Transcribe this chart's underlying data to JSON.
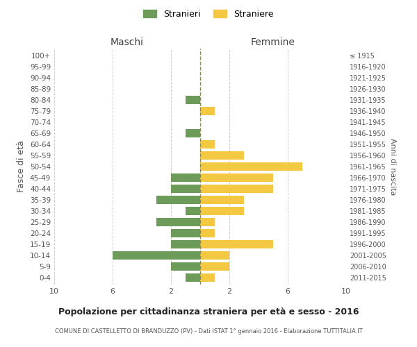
{
  "age_groups": [
    "0-4",
    "5-9",
    "10-14",
    "15-19",
    "20-24",
    "25-29",
    "30-34",
    "35-39",
    "40-44",
    "45-49",
    "50-54",
    "55-59",
    "60-64",
    "65-69",
    "70-74",
    "75-79",
    "80-84",
    "85-89",
    "90-94",
    "95-99",
    "100+"
  ],
  "birth_years": [
    "2011-2015",
    "2006-2010",
    "2001-2005",
    "1996-2000",
    "1991-1995",
    "1986-1990",
    "1981-1985",
    "1976-1980",
    "1971-1975",
    "1966-1970",
    "1961-1965",
    "1956-1960",
    "1951-1955",
    "1946-1950",
    "1941-1945",
    "1936-1940",
    "1931-1935",
    "1926-1930",
    "1921-1925",
    "1916-1920",
    "≤ 1915"
  ],
  "maschi": [
    1,
    2,
    6,
    2,
    2,
    3,
    1,
    3,
    2,
    2,
    0,
    0,
    0,
    1,
    0,
    0,
    1,
    0,
    0,
    0,
    0
  ],
  "femmine": [
    1,
    2,
    2,
    5,
    1,
    1,
    3,
    3,
    5,
    5,
    7,
    3,
    1,
    0,
    0,
    1,
    0,
    0,
    0,
    0,
    0
  ],
  "male_color": "#6d9b5a",
  "female_color": "#f5c842",
  "background_color": "#ffffff",
  "grid_color": "#cccccc",
  "center_line_color": "#888855",
  "title": "Popolazione per cittadinanza straniera per età e sesso - 2016",
  "subtitle": "COMUNE DI CASTELLETTO DI BRANDUZZO (PV) - Dati ISTAT 1° gennaio 2016 - Elaborazione TUTTITALIA.IT",
  "left_header": "Maschi",
  "right_header": "Femmine",
  "ylabel": "Fasce di età",
  "right_ylabel": "Anni di nascita",
  "legend_male": "Stranieri",
  "legend_female": "Straniere",
  "xlim": 10,
  "bar_height": 0.75
}
